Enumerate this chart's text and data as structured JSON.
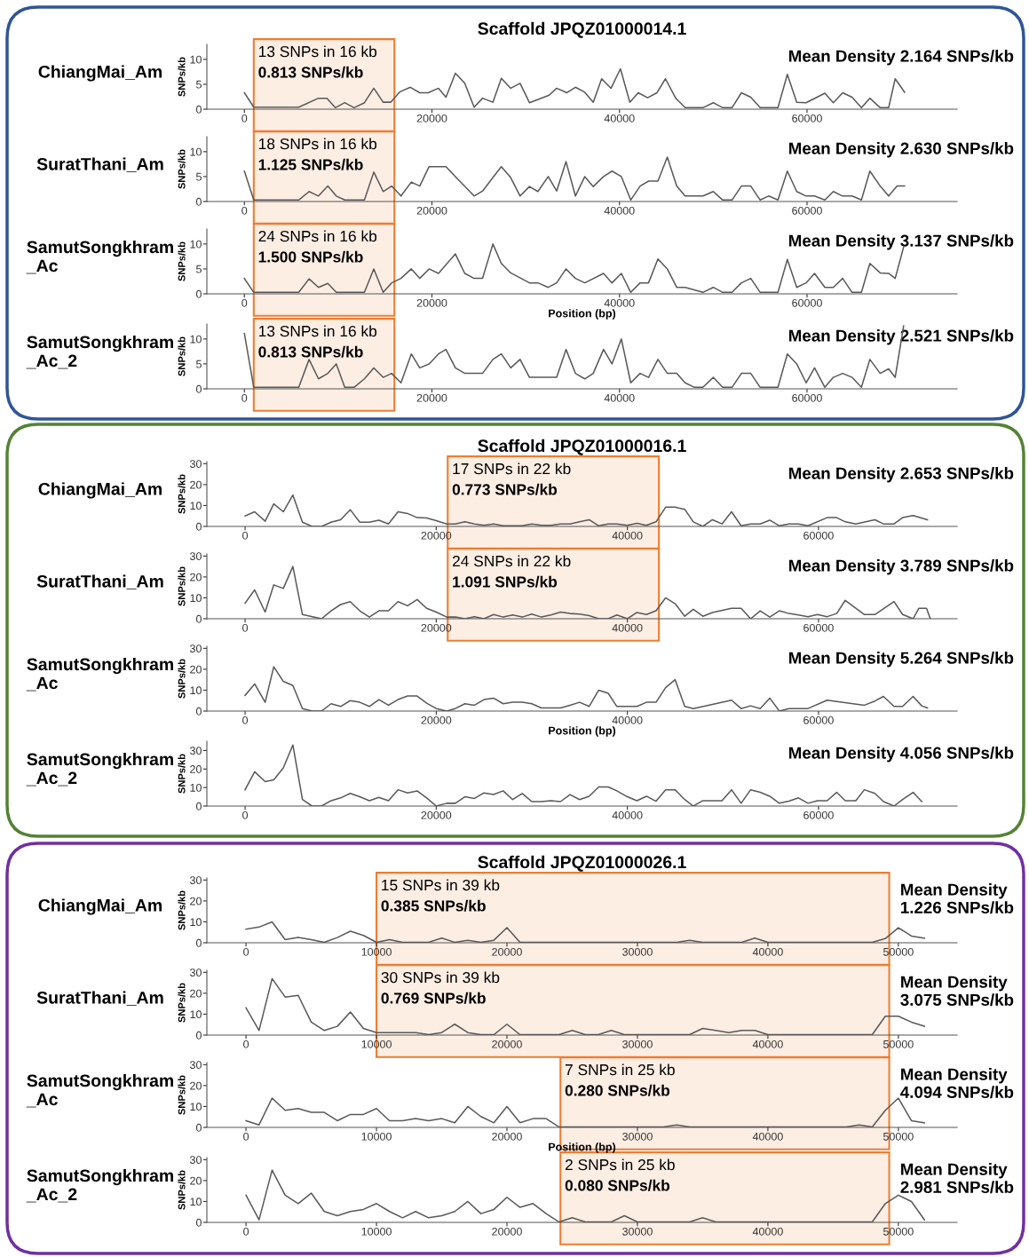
{
  "chart_data": [
    {
      "type": "line",
      "title": "Scaffold JPQZ01000014.1",
      "ylabel": "SNPs/kb",
      "color": "#595959",
      "xlim": [
        -4000,
        76000
      ],
      "ylim": [
        0,
        13
      ],
      "xticks": [
        0,
        20000,
        40000,
        60000
      ],
      "yticks": [
        0,
        5,
        10
      ],
      "x": [
        0,
        1000,
        5800,
        7900,
        8800,
        9700,
        10700,
        11700,
        12800,
        13800,
        14800,
        15600,
        16600,
        17700,
        18700,
        19600,
        20700,
        21500,
        22500,
        23500,
        24500,
        25400,
        26500,
        27400,
        28400,
        29400,
        30400,
        32500,
        33300,
        34400,
        35300,
        36300,
        37200,
        38100,
        39100,
        40100,
        41100,
        42000,
        43000,
        44000,
        44900,
        46000,
        47000,
        48900,
        50000,
        51000,
        52000,
        53000,
        54000,
        55000,
        56900,
        57900,
        58900,
        59900,
        61900,
        62800,
        63800,
        64800,
        65800,
        66700,
        67800,
        68700,
        69400,
        70400
      ],
      "values": [
        3.3,
        0.4,
        0.4,
        2.2,
        2.2,
        0.3,
        1.3,
        0.3,
        1.3,
        4.2,
        1.4,
        1.4,
        3.5,
        4.4,
        3.3,
        3.3,
        4.2,
        2.4,
        7.2,
        5.2,
        0.4,
        2.2,
        1.4,
        6.2,
        4.2,
        5.2,
        1.3,
        2.8,
        4.2,
        3.3,
        4.4,
        3.4,
        1.4,
        6.1,
        4.2,
        8.1,
        1.4,
        3.3,
        2.3,
        3.3,
        6.1,
        2.2,
        0.3,
        0.3,
        1.3,
        0.3,
        0.3,
        3.3,
        2.4,
        0.3,
        0.3,
        7,
        1.4,
        1.3,
        3.2,
        1.3,
        3.3,
        2.4,
        0.3,
        2.2,
        0.3,
        0.3,
        6.1,
        3.4
      ],
      "bands": [
        {
          "axis": "x",
          "from": 1000,
          "to": 16000,
          "label": "13 SNPs in 16 kb",
          "color": "#ed7d31"
        }
      ],
      "annotations": [
        "ChiangMai_Am",
        "Mean Density 2.164 SNPs/kb",
        "0.813 SNPs/kb"
      ]
    },
    {
      "type": "line",
      "ylabel": "SNPs/kb",
      "color": "#595959",
      "xlim": [
        -4000,
        76000
      ],
      "ylim": [
        0,
        13
      ],
      "xticks": [
        0,
        20000,
        40000,
        60000
      ],
      "yticks": [
        0,
        5,
        10
      ],
      "x": [
        0,
        1000,
        5800,
        6900,
        7900,
        8900,
        9800,
        10700,
        12800,
        13800,
        14800,
        15700,
        16700,
        17800,
        18700,
        19700,
        21500,
        22500,
        24500,
        25400,
        26500,
        27400,
        28400,
        29400,
        30400,
        31300,
        32400,
        33300,
        34300,
        35300,
        36300,
        37200,
        38300,
        39200,
        40200,
        41200,
        42200,
        43100,
        44100,
        45100,
        46100,
        47000,
        48900,
        50000,
        51000,
        52000,
        53000,
        54000,
        55000,
        55900,
        56900,
        57900,
        58900,
        59900,
        60800,
        61900,
        62800,
        63800,
        64800,
        65800,
        66700,
        67800,
        68700,
        69600,
        70400
      ],
      "values": [
        6.1,
        0.3,
        0.3,
        2,
        1.1,
        3.1,
        1.1,
        0.3,
        0.3,
        5.9,
        2,
        3.1,
        1.1,
        3.9,
        3.1,
        7,
        7,
        5,
        1.1,
        2.1,
        4.8,
        7,
        4.8,
        1.1,
        3,
        2,
        5,
        2.1,
        8,
        1.1,
        5,
        3,
        5,
        6.1,
        5,
        0.3,
        3.1,
        4.1,
        4.1,
        8.9,
        3.1,
        1.1,
        1.1,
        2,
        0.3,
        0.3,
        3.1,
        3.1,
        0.3,
        1.1,
        0.3,
        6.1,
        2,
        1.1,
        1.1,
        0.3,
        2,
        1.1,
        1.1,
        0.3,
        6.1,
        3.1,
        1.1,
        3.1,
        3.1
      ],
      "bands": [
        {
          "axis": "x",
          "from": 1000,
          "to": 16000,
          "label": "18 SNPs in 16 kb",
          "color": "#ed7d31"
        }
      ],
      "annotations": [
        "SuratThani_Am",
        "Mean Density 2.630 SNPs/kb",
        "1.125 SNPs/kb"
      ]
    },
    {
      "type": "line",
      "xlabel": "Position (bp)",
      "ylabel": "SNPs/kb",
      "color": "#595959",
      "xlim": [
        -4000,
        76000
      ],
      "ylim": [
        0,
        13
      ],
      "xticks": [
        0,
        20000,
        40000,
        60000
      ],
      "yticks": [
        0,
        5,
        10
      ],
      "x": [
        0,
        1000,
        5800,
        6900,
        7900,
        8900,
        9800,
        12800,
        13800,
        14800,
        15700,
        16700,
        17800,
        18700,
        19700,
        20700,
        22500,
        23500,
        24500,
        25400,
        26500,
        27400,
        28400,
        30400,
        31300,
        32400,
        33300,
        34300,
        35300,
        36300,
        38300,
        39200,
        40200,
        41200,
        42200,
        43100,
        44100,
        45100,
        46100,
        47000,
        48900,
        50000,
        51000,
        52000,
        53000,
        54000,
        55000,
        56900,
        57900,
        58900,
        59900,
        60800,
        61900,
        62800,
        63800,
        64800,
        65800,
        66700,
        67800,
        68700,
        69400,
        70300
      ],
      "values": [
        3.1,
        0.3,
        0.3,
        3,
        1.3,
        2.1,
        0.3,
        0.3,
        5,
        0.3,
        2.2,
        3.1,
        5,
        3.1,
        5,
        4.1,
        8,
        4.1,
        3.1,
        3.1,
        10,
        6.1,
        4.2,
        2.2,
        2.2,
        1.3,
        2.2,
        5,
        3.1,
        2.2,
        4.1,
        2.2,
        4.1,
        0.3,
        2.2,
        2.2,
        7,
        5,
        1.3,
        1.3,
        0.3,
        1.3,
        0.3,
        0.3,
        2.2,
        3.1,
        0.3,
        0.3,
        6.9,
        1.3,
        2.2,
        4.1,
        1.3,
        1.3,
        3.1,
        0.3,
        0.3,
        6.1,
        4.2,
        4.1,
        3.1,
        9.4
      ],
      "bands": [
        {
          "axis": "x",
          "from": 1000,
          "to": 16000,
          "label": "24 SNPs in 16 kb",
          "color": "#ed7d31"
        }
      ],
      "annotations": [
        "SamutSongkhram\n_Ac",
        "Mean Density 3.137 SNPs/kb",
        "1.500 SNPs/kb"
      ]
    },
    {
      "type": "line",
      "ylabel": "SNPs/kb",
      "color": "#595959",
      "xlim": [
        -4000,
        76000
      ],
      "ylim": [
        0,
        13
      ],
      "xticks": [
        0,
        20000,
        40000,
        60000
      ],
      "yticks": [
        0,
        5,
        10
      ],
      "x": [
        0,
        1000,
        5800,
        6900,
        7900,
        8900,
        9800,
        10700,
        11700,
        12800,
        13800,
        14800,
        15700,
        16700,
        17800,
        18700,
        19700,
        20700,
        21500,
        22500,
        23500,
        25400,
        26500,
        27400,
        28400,
        29400,
        30400,
        33300,
        34300,
        35300,
        36300,
        37200,
        38300,
        39200,
        40200,
        41200,
        42200,
        43100,
        44100,
        45100,
        46100,
        47000,
        48000,
        48900,
        50000,
        51000,
        52000,
        53000,
        54000,
        55000,
        56900,
        57900,
        58900,
        59900,
        60800,
        61900,
        62800,
        63800,
        64800,
        65800,
        66700,
        67800,
        68700,
        69400,
        70300
      ],
      "values": [
        11.1,
        0.3,
        0.3,
        5.9,
        2,
        3.1,
        5,
        0.3,
        0.3,
        2,
        4.2,
        2.3,
        3.1,
        1.2,
        7,
        4.2,
        5,
        7,
        7.9,
        4.2,
        3.1,
        3.1,
        5.9,
        7,
        4.2,
        5.9,
        2.3,
        2.3,
        7.9,
        3.1,
        2,
        3.1,
        7.9,
        5,
        10,
        1.2,
        3.1,
        2.3,
        5.9,
        3.1,
        3.1,
        1.2,
        0.3,
        0.3,
        2.3,
        0.3,
        0.3,
        3.1,
        3.1,
        0.3,
        0.3,
        7,
        5,
        1.2,
        4.2,
        0.3,
        2.3,
        3.1,
        2.3,
        0.3,
        5.9,
        3.1,
        4,
        2.3,
        12.6
      ],
      "bands": [
        {
          "axis": "x",
          "from": 1000,
          "to": 16000,
          "label": "13 SNPs in 16 kb",
          "color": "#ed7d31"
        }
      ],
      "annotations": [
        "SamutSongkhram\n_Ac_2",
        "Mean Density 2.521 SNPs/kb",
        "0.813 SNPs/kb"
      ]
    },
    {
      "type": "line",
      "title": "Scaffold JPQZ01000016.1",
      "ylabel": "SNPs/kb",
      "color": "#595959",
      "xlim": [
        -4000,
        74500
      ],
      "ylim": [
        0,
        31
      ],
      "xticks": [
        0,
        20000,
        40000,
        60000
      ],
      "yticks": [
        0,
        10,
        20,
        30
      ],
      "x": [
        0,
        1000,
        2100,
        3000,
        4000,
        5000,
        6000,
        7000,
        8000,
        9000,
        10000,
        11000,
        12000,
        13000,
        14000,
        15000,
        16000,
        17000,
        18000,
        19000,
        20000,
        21100,
        22000,
        23000,
        24000,
        25000,
        26000,
        27000,
        29000,
        30000,
        31000,
        32000,
        33000,
        34000,
        35000,
        36000,
        37000,
        38000,
        38900,
        40000,
        41000,
        42000,
        43000,
        44000,
        45000,
        46000,
        46900,
        47900,
        48900,
        49900,
        50900,
        51900,
        52900,
        53900,
        54900,
        55900,
        56900,
        57900,
        58900,
        60900,
        61900,
        62800,
        63900,
        65900,
        66800,
        67900,
        68800,
        69900,
        71400
      ],
      "values": [
        5,
        7,
        2.5,
        10.8,
        7,
        15,
        2,
        0,
        0,
        2,
        3.2,
        8,
        2,
        2,
        3,
        1.2,
        7,
        6.2,
        4.2,
        4,
        2.8,
        1.2,
        1.2,
        2.2,
        1.2,
        0.5,
        1.2,
        0.3,
        0.3,
        1.2,
        0.5,
        0.5,
        1.2,
        1.2,
        2.2,
        3.2,
        0.3,
        1.2,
        1.2,
        0.5,
        1.5,
        0.5,
        2.2,
        9.2,
        9.2,
        8.2,
        2.2,
        0,
        3.2,
        1.2,
        7,
        0.3,
        1.2,
        1.2,
        3,
        0.3,
        1.2,
        1.2,
        0.3,
        4.2,
        4.2,
        2.2,
        1.2,
        3.2,
        1.2,
        1.2,
        4.2,
        5.2,
        3.2
      ],
      "bands": [
        {
          "axis": "x",
          "from": 21200,
          "to": 43300,
          "label": "17 SNPs in 22 kb",
          "color": "#ed7d31"
        }
      ],
      "annotations": [
        "ChiangMai_Am",
        "Mean Density 2.653 SNPs/kb",
        "0.773 SNPs/kb"
      ]
    },
    {
      "type": "line",
      "ylabel": "SNPs/kb",
      "color": "#595959",
      "xlim": [
        -4000,
        74500
      ],
      "ylim": [
        0,
        31
      ],
      "xticks": [
        0,
        20000,
        40000,
        60000
      ],
      "yticks": [
        0,
        10,
        20,
        30
      ],
      "x": [
        0,
        1000,
        2100,
        3000,
        4000,
        5000,
        6000,
        8000,
        9000,
        10000,
        11000,
        12000,
        13000,
        14000,
        15000,
        16000,
        17000,
        18000,
        19000,
        20000,
        21100,
        22000,
        23000,
        24000,
        25000,
        26000,
        27000,
        28000,
        29000,
        30000,
        31000,
        32000,
        33000,
        34000,
        35000,
        36000,
        37000,
        38000,
        38900,
        40000,
        41000,
        42000,
        43000,
        44000,
        45000,
        46000,
        46900,
        47900,
        48900,
        50900,
        51900,
        52900,
        53900,
        54900,
        55900,
        56900,
        57900,
        58900,
        59900,
        60900,
        61900,
        62800,
        63900,
        64800,
        65900,
        67900,
        68800,
        69900,
        70500,
        71300,
        71700
      ],
      "values": [
        7.5,
        13.8,
        3.2,
        16.2,
        14.5,
        25,
        2,
        0,
        3.8,
        6.8,
        8.2,
        3.8,
        0.8,
        3.8,
        3.8,
        8.2,
        6.2,
        9.2,
        5,
        3.2,
        0.8,
        0.8,
        0,
        1,
        0,
        2,
        0.8,
        1.8,
        0.8,
        2.2,
        0.8,
        1.8,
        3.2,
        2.5,
        2.2,
        1.5,
        0,
        0,
        1.8,
        0,
        3,
        2,
        3.8,
        10,
        7.2,
        1.2,
        4.5,
        1.2,
        3,
        5,
        5,
        0,
        3.8,
        0.8,
        3.8,
        2.5,
        1.8,
        1,
        2,
        1,
        2.5,
        8.8,
        5,
        2,
        2,
        8.2,
        2,
        0,
        5,
        5,
        0
      ],
      "bands": [
        {
          "axis": "x",
          "from": 21200,
          "to": 43300,
          "label": "24 SNPs in 22 kb",
          "color": "#ed7d31"
        }
      ],
      "annotations": [
        "SuratThani_Am",
        "Mean Density 3.789 SNPs/kb",
        "1.091 SNPs/kb"
      ]
    },
    {
      "type": "line",
      "xlabel": "Position (bp)",
      "ylabel": "SNPs/kb",
      "color": "#595959",
      "xlim": [
        -4000,
        74500
      ],
      "ylim": [
        0,
        31
      ],
      "xticks": [
        0,
        20000,
        40000,
        60000
      ],
      "yticks": [
        0,
        10,
        20,
        30
      ],
      "x": [
        0,
        1000,
        2100,
        3000,
        4000,
        5000,
        6000,
        7000,
        8000,
        9000,
        10000,
        11000,
        12000,
        13000,
        14000,
        15000,
        16000,
        17000,
        18000,
        19000,
        20000,
        21100,
        22000,
        23000,
        24000,
        25000,
        26000,
        27000,
        28000,
        29000,
        30000,
        31000,
        33000,
        34000,
        35000,
        36000,
        37000,
        38000,
        38900,
        41000,
        42000,
        43000,
        44000,
        45000,
        46000,
        46900,
        50900,
        51900,
        52900,
        53900,
        54900,
        55900,
        56900,
        58900,
        60900,
        64800,
        65900,
        66800,
        67900,
        68800,
        69900,
        70800,
        71400
      ],
      "values": [
        7.5,
        13,
        4.2,
        21.2,
        14.2,
        12.2,
        1.2,
        0,
        0,
        3.5,
        2.2,
        5,
        4.2,
        2.2,
        5.5,
        2.8,
        5.5,
        7.2,
        7.2,
        3.8,
        1.2,
        0,
        1.2,
        3.5,
        2.8,
        5.5,
        6.2,
        3.5,
        4.2,
        4.2,
        3.5,
        1.5,
        1.5,
        2.8,
        4.2,
        2.2,
        10,
        8.5,
        2.2,
        2.2,
        4.2,
        4.2,
        11.2,
        15,
        2.2,
        1.2,
        5.2,
        1.2,
        2.5,
        1.2,
        6.2,
        0,
        1.2,
        1.2,
        5.2,
        2.8,
        4.8,
        7,
        2.2,
        2.2,
        7,
        2.5,
        1.5
      ],
      "annotations": [
        "SamutSongkhram\n_Ac",
        "Mean Density 5.264 SNPs/kb"
      ]
    },
    {
      "type": "line",
      "ylabel": "SNPs/kb",
      "color": "#595959",
      "xlim": [
        -4000,
        74500
      ],
      "ylim": [
        0,
        35
      ],
      "xticks": [
        0,
        20000,
        40000,
        60000
      ],
      "yticks": [
        0,
        10,
        20,
        30
      ],
      "x": [
        0,
        1000,
        2100,
        3000,
        4000,
        5000,
        6000,
        7000,
        8000,
        9000,
        10000,
        11000,
        12000,
        13000,
        14000,
        15000,
        16000,
        17000,
        18000,
        19000,
        20000,
        21100,
        22000,
        23000,
        24000,
        25000,
        26000,
        27000,
        28000,
        29000,
        30000,
        31000,
        32000,
        33000,
        34000,
        35000,
        36000,
        37000,
        38000,
        38900,
        40000,
        41000,
        42000,
        43000,
        44000,
        45000,
        46000,
        46900,
        47900,
        49900,
        50900,
        51900,
        52900,
        53900,
        54900,
        55900,
        56900,
        57900,
        58900,
        59900,
        60900,
        61900,
        62800,
        63900,
        64800,
        65900,
        66800,
        67900,
        68800,
        69900,
        70800
      ],
      "values": [
        8.8,
        18.5,
        13.2,
        14.1,
        20.6,
        33,
        3.5,
        0,
        0,
        2.9,
        4.4,
        6.8,
        5,
        2.9,
        4.7,
        2.9,
        8.8,
        7.1,
        8.2,
        4.4,
        0,
        1.5,
        1.5,
        5,
        4.1,
        7.1,
        6.2,
        8.2,
        3.5,
        6.8,
        2.4,
        2.4,
        2.9,
        2.4,
        6.2,
        3.5,
        5.3,
        10.3,
        10.3,
        8.2,
        5,
        2.9,
        5.3,
        2.6,
        8.8,
        8.8,
        3.5,
        0,
        2.9,
        2.9,
        8.8,
        1.5,
        8.8,
        7.4,
        5.3,
        1.5,
        2.6,
        4.4,
        1.5,
        2.9,
        2.9,
        7.4,
        2.9,
        2.9,
        8.8,
        6.8,
        2.4,
        0,
        3.5,
        7.4,
        2.4
      ],
      "annotations": [
        "SamutSongkhram\n_Ac_2",
        "Mean Density 4.056 SNPs/kb"
      ]
    },
    {
      "type": "line",
      "title": "Scaffold JPQZ01000026.1",
      "ylabel": "SNPs/kb",
      "color": "#595959",
      "xlim": [
        -3000,
        54500
      ],
      "ylim": [
        0,
        31
      ],
      "xticks": [
        0,
        10000,
        20000,
        30000,
        40000,
        50000
      ],
      "yticks": [
        0,
        10,
        20,
        30
      ],
      "x": [
        0,
        1000,
        2000,
        3000,
        4000,
        5000,
        6000,
        7000,
        8000,
        9000,
        10000,
        11000,
        12000,
        14000,
        15000,
        16000,
        17000,
        18000,
        19000,
        20000,
        21000,
        33000,
        34000,
        35000,
        38000,
        39000,
        40000,
        48000,
        49000,
        50000,
        51000,
        52000
      ],
      "values": [
        6.5,
        7.5,
        10,
        1.5,
        2.5,
        1.5,
        0.2,
        2.5,
        5.5,
        3.5,
        0.2,
        1.5,
        0.2,
        0.2,
        2.2,
        0.2,
        1.2,
        0.2,
        1.2,
        7.2,
        0.2,
        0.2,
        1.2,
        0.2,
        0.2,
        2.2,
        0.2,
        0.2,
        2,
        7.2,
        3.2,
        2.2
      ],
      "bands": [
        {
          "axis": "x",
          "from": 10000,
          "to": 49300,
          "label": "15 SNPs in 39 kb",
          "color": "#ed7d31"
        }
      ],
      "annotations": [
        "ChiangMai_Am",
        "Mean Density\n1.226 SNPs/kb",
        "0.385 SNPs/kb"
      ]
    },
    {
      "type": "line",
      "ylabel": "SNPs/kb",
      "color": "#595959",
      "xlim": [
        -3000,
        54500
      ],
      "ylim": [
        0,
        31
      ],
      "xticks": [
        0,
        10000,
        20000,
        30000,
        40000,
        50000
      ],
      "yticks": [
        0,
        10,
        20,
        30
      ],
      "x": [
        0,
        1000,
        2000,
        3000,
        4000,
        5000,
        6000,
        7000,
        8000,
        9000,
        10000,
        13000,
        14000,
        15000,
        16000,
        17000,
        18000,
        19000,
        20000,
        21000,
        24000,
        25000,
        26000,
        27000,
        28000,
        29000,
        34000,
        35000,
        36000,
        37000,
        38000,
        39000,
        40000,
        48000,
        49000,
        50000,
        51000,
        52000
      ],
      "values": [
        13,
        2.2,
        27,
        18.2,
        19,
        6.2,
        2.2,
        4.2,
        11,
        3.2,
        1.2,
        1.2,
        0.2,
        1.2,
        5.2,
        1.2,
        0.2,
        0.2,
        5.2,
        0.2,
        0.2,
        2.2,
        0.2,
        0.2,
        2.2,
        0.2,
        0.2,
        3.2,
        2.2,
        1.2,
        2.2,
        2.2,
        0.2,
        0.2,
        9,
        9,
        6.2,
        4.2
      ],
      "bands": [
        {
          "axis": "x",
          "from": 10000,
          "to": 49300,
          "label": "30 SNPs in 39 kb",
          "color": "#ed7d31"
        }
      ],
      "annotations": [
        "SuratThani_Am",
        "Mean Density\n3.075 SNPs/kb",
        "0.769 SNPs/kb"
      ]
    },
    {
      "type": "line",
      "xlabel": "Position (bp)",
      "ylabel": "SNPs/kb",
      "color": "#595959",
      "xlim": [
        -3000,
        54500
      ],
      "ylim": [
        0,
        31
      ],
      "xticks": [
        0,
        10000,
        20000,
        30000,
        40000,
        50000
      ],
      "yticks": [
        0,
        10,
        20,
        30
      ],
      "x": [
        0,
        1000,
        2000,
        3000,
        4000,
        5000,
        6000,
        7000,
        8000,
        9000,
        10000,
        11000,
        12000,
        13000,
        14000,
        15000,
        16000,
        17000,
        18000,
        19000,
        20000,
        21000,
        22000,
        23000,
        24000,
        32000,
        33000,
        34000,
        46000,
        47000,
        48000,
        49000,
        50000,
        51000,
        52000
      ],
      "values": [
        3.2,
        1.2,
        14,
        8.2,
        9,
        7.2,
        7.2,
        3.2,
        6.2,
        6.2,
        9,
        3.2,
        3.2,
        4.2,
        3.2,
        4.2,
        2.2,
        10,
        5.2,
        2.2,
        10,
        2.2,
        4.2,
        4.2,
        0.2,
        0.2,
        1.2,
        0.2,
        0.2,
        1.2,
        0.2,
        8.2,
        14,
        3.2,
        2.2
      ],
      "bands": [
        {
          "axis": "x",
          "from": 24100,
          "to": 49300,
          "label": "7 SNPs in 25 kb",
          "color": "#ed7d31"
        }
      ],
      "annotations": [
        "SamutSongkhram\n_Ac",
        "Mean Density\n4.094 SNPs/kb",
        "0.280 SNPs/kb"
      ]
    },
    {
      "type": "line",
      "ylabel": "SNPs/kb",
      "color": "#595959",
      "xlim": [
        -3000,
        54500
      ],
      "ylim": [
        0,
        31
      ],
      "xticks": [
        0,
        10000,
        20000,
        30000,
        40000,
        50000
      ],
      "yticks": [
        0,
        10,
        20,
        30
      ],
      "x": [
        0,
        1000,
        2000,
        3000,
        4000,
        5000,
        6000,
        7000,
        8000,
        9000,
        10000,
        11000,
        12000,
        13000,
        14000,
        15000,
        16000,
        17000,
        18000,
        19000,
        20000,
        21000,
        22000,
        23000,
        24000,
        25000,
        26000,
        28000,
        29000,
        30000,
        34000,
        35000,
        36000,
        48000,
        49000,
        50000,
        51000,
        52000
      ],
      "values": [
        13,
        1.2,
        25,
        13,
        9,
        14,
        5.2,
        3.2,
        5.2,
        6.2,
        9,
        5.2,
        2.2,
        5.2,
        2.2,
        3.2,
        5.2,
        10,
        4.2,
        6.2,
        12,
        7.2,
        9,
        4.2,
        0.2,
        2.2,
        0.2,
        0.2,
        3.2,
        0.2,
        0.2,
        2.2,
        0.2,
        0.2,
        9,
        13,
        10,
        1.2
      ],
      "bands": [
        {
          "axis": "x",
          "from": 24100,
          "to": 49300,
          "label": "2 SNPs in 25 kb",
          "color": "#ed7d31"
        }
      ],
      "annotations": [
        "SamutSongkhram\n_Ac_2",
        "Mean Density\n2.981 SNPs/kb",
        "0.080 SNPs/kb"
      ]
    }
  ]
}
